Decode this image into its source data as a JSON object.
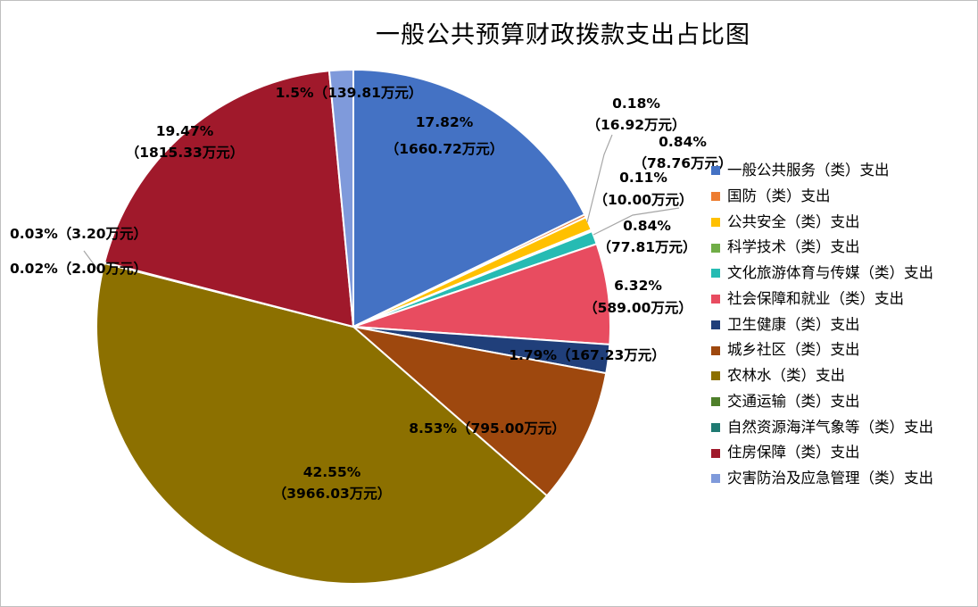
{
  "chart_data": {
    "type": "pie",
    "title": "一般公共预算财政拨款支出占比图",
    "start_angle_deg": 0,
    "direction": "clockwise",
    "legend_position": "right",
    "slices": [
      {
        "name": "一般公共服务（类）支出",
        "value": 1660.72,
        "pct_label": "17.82%",
        "amount_label": "（1660.72万元）",
        "color": "#4472C4"
      },
      {
        "name": "国防（类）支出",
        "value": 16.92,
        "pct_label": "0.18%",
        "amount_label": "（16.92万元）",
        "color": "#ED7D31"
      },
      {
        "name": "公共安全（类）支出",
        "value": 78.76,
        "pct_label": "0.84%",
        "amount_label": "（78.76万元）",
        "color": "#FFC000"
      },
      {
        "name": "科学技术（类）支出",
        "value": 10.0,
        "pct_label": "0.11%",
        "amount_label": "（10.00万元）",
        "color": "#70AD47"
      },
      {
        "name": "文化旅游体育与传媒（类）支出",
        "value": 77.81,
        "pct_label": "0.84%",
        "amount_label": "（77.81万元）",
        "color": "#26BBB3"
      },
      {
        "name": "社会保障和就业（类）支出",
        "value": 589.0,
        "pct_label": "6.32%",
        "amount_label": "（589.00万元）",
        "color": "#E84C60"
      },
      {
        "name": "卫生健康（类）支出",
        "value": 167.23,
        "pct_label": "1.79%",
        "amount_label": "（167.23万元）",
        "color": "#203F7A"
      },
      {
        "name": "城乡社区（类）支出",
        "value": 795.0,
        "pct_label": "8.53%",
        "amount_label": "（795.00万元）",
        "color": "#9E480E"
      },
      {
        "name": "农林水（类）支出",
        "value": 3966.03,
        "pct_label": "42.55%",
        "amount_label": "（3966.03万元）",
        "color": "#8C7000"
      },
      {
        "name": "交通运输（类）支出",
        "value": 2.0,
        "pct_label": "0.02%",
        "amount_label": "（2.00万元）",
        "color": "#4E7F2A"
      },
      {
        "name": "自然资源海洋气象等（类）支出",
        "value": 3.2,
        "pct_label": "0.03%",
        "amount_label": "（3.20万元）",
        "color": "#1F7A72"
      },
      {
        "name": "住房保障（类）支出",
        "value": 1815.33,
        "pct_label": "19.47%",
        "amount_label": "（1815.33万元）",
        "color": "#A0192B"
      },
      {
        "name": "灾害防治及应急管理（类）支出",
        "value": 139.81,
        "pct_label": "1.5%",
        "amount_label": "（139.81万元）",
        "color": "#7F9ADB"
      }
    ]
  }
}
